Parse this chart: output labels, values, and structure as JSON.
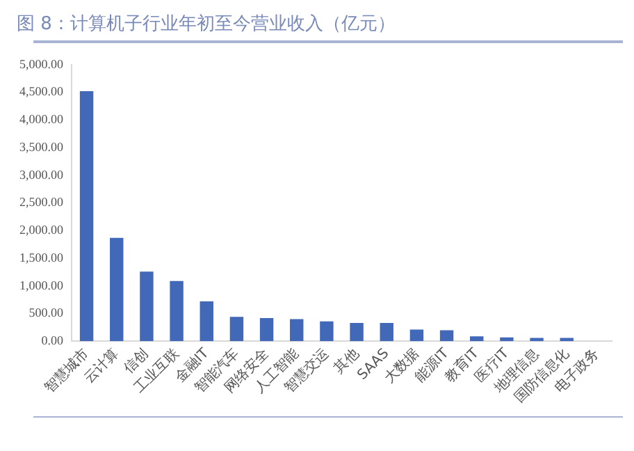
{
  "chart_data": {
    "type": "bar",
    "title": "图 8：计算机子行业年初至今营业收入（亿元）",
    "categories": [
      "智慧城市",
      "云计算",
      "信创",
      "工业互联",
      "金融IT",
      "智能汽车",
      "网络安全",
      "人工智能",
      "智慧交运",
      "其他",
      "SAAS",
      "大数据",
      "能源IT",
      "教育IT",
      "医疗IT",
      "地理信息",
      "国防信息化",
      "电子政务"
    ],
    "values": [
      4520,
      1870,
      1260,
      1090,
      720,
      440,
      420,
      400,
      360,
      330,
      330,
      210,
      200,
      90,
      70,
      60,
      60,
      null
    ],
    "color": "#4169b8",
    "ylim": [
      0,
      5000
    ],
    "yticks": [
      {
        "value": 0,
        "label": "0.00"
      },
      {
        "value": 500,
        "label": "500.00"
      },
      {
        "value": 1000,
        "label": "1,000.00"
      },
      {
        "value": 1500,
        "label": "1,500.00"
      },
      {
        "value": 2000,
        "label": "2,000.00"
      },
      {
        "value": 2500,
        "label": "2,500.00"
      },
      {
        "value": 3000,
        "label": "3,000.00"
      },
      {
        "value": 3500,
        "label": "3,500.00"
      },
      {
        "value": 4000,
        "label": "4,000.00"
      },
      {
        "value": 4500,
        "label": "4,500.00"
      },
      {
        "value": 5000,
        "label": "5,000.00"
      }
    ],
    "grid": false
  }
}
